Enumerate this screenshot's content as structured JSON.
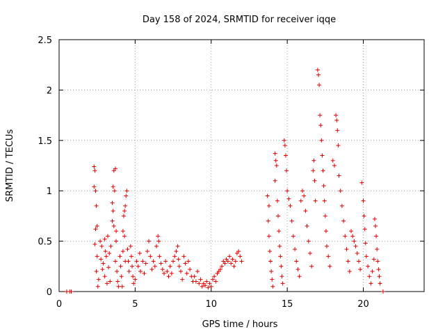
{
  "chart_data": {
    "type": "scatter",
    "title": "Day 158 of 2024, SRMTID for receiver iqqe",
    "xlabel": "GPS time / hours",
    "ylabel": "SRMTID / TECUs",
    "xlim": [
      0,
      24
    ],
    "ylim": [
      0,
      2.5
    ],
    "x_ticks": [
      0,
      5,
      10,
      15,
      20
    ],
    "x_tick_labels": [
      "0",
      "5",
      "10",
      "15",
      "20"
    ],
    "y_ticks": [
      0,
      0.5,
      1,
      1.5,
      2,
      2.5
    ],
    "y_tick_labels": [
      "0",
      "0.5",
      "1",
      "1.5",
      "2",
      "2.5"
    ],
    "grid": true,
    "marker": "+",
    "color": "#e00000",
    "series": [
      {
        "name": "SRMTID",
        "points": [
          [
            0.5,
            0
          ],
          [
            0.7,
            0
          ],
          [
            0.8,
            0
          ],
          [
            2.3,
            1.24
          ],
          [
            2.35,
            1.2
          ],
          [
            2.3,
            1.04
          ],
          [
            2.4,
            1.0
          ],
          [
            2.45,
            0.85
          ],
          [
            2.5,
            0.65
          ],
          [
            2.4,
            0.62
          ],
          [
            2.35,
            0.47
          ],
          [
            2.5,
            0.35
          ],
          [
            2.45,
            0.2
          ],
          [
            2.6,
            0.12
          ],
          [
            2.55,
            0.05
          ],
          [
            2.7,
            0.5
          ],
          [
            2.8,
            0.45
          ],
          [
            2.75,
            0.32
          ],
          [
            2.9,
            0.28
          ],
          [
            2.85,
            0.22
          ],
          [
            3.0,
            0.52
          ],
          [
            3.05,
            0.4
          ],
          [
            3.1,
            0.35
          ],
          [
            3.0,
            0.15
          ],
          [
            3.15,
            0.08
          ],
          [
            3.2,
            0.55
          ],
          [
            3.3,
            0.38
          ],
          [
            3.25,
            0.24
          ],
          [
            3.35,
            0.1
          ],
          [
            3.4,
            0.45
          ],
          [
            3.5,
            0.88
          ],
          [
            3.55,
            0.8
          ],
          [
            3.5,
            0.7
          ],
          [
            3.6,
            0.65
          ],
          [
            3.55,
            1.04
          ],
          [
            3.65,
            1.0
          ],
          [
            3.6,
            1.2
          ],
          [
            3.7,
            1.22
          ],
          [
            3.75,
            0.5
          ],
          [
            3.7,
            0.3
          ],
          [
            3.8,
            0.2
          ],
          [
            3.85,
            0.1
          ],
          [
            3.9,
            0.05
          ],
          [
            3.75,
            0.6
          ],
          [
            4.0,
            0.35
          ],
          [
            4.05,
            0.25
          ],
          [
            4.1,
            0.15
          ],
          [
            4.15,
            0.05
          ],
          [
            4.2,
            0.6
          ],
          [
            4.25,
            0.75
          ],
          [
            4.3,
            0.8
          ],
          [
            4.35,
            0.85
          ],
          [
            4.4,
            0.95
          ],
          [
            4.45,
            1.0
          ],
          [
            4.3,
            0.55
          ],
          [
            4.2,
            0.4
          ],
          [
            4.35,
            0.3
          ],
          [
            4.5,
            0.42
          ],
          [
            4.55,
            0.3
          ],
          [
            4.6,
            0.2
          ],
          [
            4.7,
            0.45
          ],
          [
            4.75,
            0.35
          ],
          [
            4.8,
            0.25
          ],
          [
            4.85,
            0.15
          ],
          [
            4.9,
            0.08
          ],
          [
            5.0,
            0.12
          ],
          [
            5.1,
            0.3
          ],
          [
            5.2,
            0.25
          ],
          [
            5.3,
            0.38
          ],
          [
            5.35,
            0.2
          ],
          [
            5.5,
            0.3
          ],
          [
            5.6,
            0.18
          ],
          [
            5.7,
            0.28
          ],
          [
            5.8,
            0.4
          ],
          [
            5.9,
            0.5
          ],
          [
            6.0,
            0.35
          ],
          [
            6.1,
            0.22
          ],
          [
            6.2,
            0.3
          ],
          [
            6.3,
            0.25
          ],
          [
            6.4,
            0.45
          ],
          [
            6.5,
            0.55
          ],
          [
            6.55,
            0.5
          ],
          [
            6.6,
            0.35
          ],
          [
            6.7,
            0.28
          ],
          [
            6.8,
            0.22
          ],
          [
            6.9,
            0.18
          ],
          [
            7.0,
            0.3
          ],
          [
            7.1,
            0.2
          ],
          [
            7.2,
            0.15
          ],
          [
            7.3,
            0.25
          ],
          [
            7.4,
            0.18
          ],
          [
            7.5,
            0.3
          ],
          [
            7.6,
            0.35
          ],
          [
            7.7,
            0.4
          ],
          [
            7.8,
            0.45
          ],
          [
            7.85,
            0.32
          ],
          [
            7.9,
            0.25
          ],
          [
            8.0,
            0.2
          ],
          [
            8.1,
            0.12
          ],
          [
            8.2,
            0.35
          ],
          [
            8.3,
            0.28
          ],
          [
            8.4,
            0.18
          ],
          [
            8.5,
            0.3
          ],
          [
            8.6,
            0.22
          ],
          [
            8.7,
            0.15
          ],
          [
            8.8,
            0.1
          ],
          [
            8.9,
            0.15
          ],
          [
            9.0,
            0.1
          ],
          [
            9.1,
            0.2
          ],
          [
            9.2,
            0.08
          ],
          [
            9.3,
            0.12
          ],
          [
            9.4,
            0.05
          ],
          [
            9.5,
            0.08
          ],
          [
            9.6,
            0.06
          ],
          [
            9.7,
            0.1
          ],
          [
            9.8,
            0.04
          ],
          [
            9.9,
            0.08
          ],
          [
            10.0,
            0.05
          ],
          [
            10.1,
            0.12
          ],
          [
            10.2,
            0.15
          ],
          [
            10.3,
            0.1
          ],
          [
            10.4,
            0.18
          ],
          [
            10.5,
            0.2
          ],
          [
            10.6,
            0.22
          ],
          [
            10.7,
            0.25
          ],
          [
            10.8,
            0.3
          ],
          [
            10.9,
            0.28
          ],
          [
            11.0,
            0.32
          ],
          [
            11.1,
            0.3
          ],
          [
            11.2,
            0.35
          ],
          [
            11.3,
            0.28
          ],
          [
            11.4,
            0.32
          ],
          [
            11.5,
            0.25
          ],
          [
            11.6,
            0.3
          ],
          [
            11.7,
            0.38
          ],
          [
            11.8,
            0.4
          ],
          [
            11.9,
            0.35
          ],
          [
            12.0,
            0.3
          ],
          [
            13.7,
            0.95
          ],
          [
            13.8,
            0.85
          ],
          [
            13.75,
            0.7
          ],
          [
            13.8,
            0.55
          ],
          [
            13.85,
            0.4
          ],
          [
            13.9,
            0.3
          ],
          [
            13.95,
            0.2
          ],
          [
            14.0,
            0.12
          ],
          [
            14.05,
            0.05
          ],
          [
            14.2,
            1.37
          ],
          [
            14.25,
            1.3
          ],
          [
            14.3,
            1.25
          ],
          [
            14.2,
            1.1
          ],
          [
            14.35,
            0.9
          ],
          [
            14.4,
            0.75
          ],
          [
            14.45,
            0.6
          ],
          [
            14.5,
            0.45
          ],
          [
            14.55,
            0.35
          ],
          [
            14.6,
            0.25
          ],
          [
            14.65,
            0.15
          ],
          [
            14.7,
            0.08
          ],
          [
            14.8,
            1.5
          ],
          [
            14.85,
            1.45
          ],
          [
            14.9,
            1.35
          ],
          [
            14.95,
            1.2
          ],
          [
            15.0,
            1.0
          ],
          [
            15.1,
            0.92
          ],
          [
            15.2,
            0.85
          ],
          [
            15.3,
            0.7
          ],
          [
            15.4,
            0.55
          ],
          [
            15.5,
            0.42
          ],
          [
            15.6,
            0.3
          ],
          [
            15.7,
            0.22
          ],
          [
            15.8,
            0.15
          ],
          [
            15.9,
            0.9
          ],
          [
            16.0,
            1.0
          ],
          [
            16.1,
            0.95
          ],
          [
            16.2,
            0.8
          ],
          [
            16.3,
            0.65
          ],
          [
            16.4,
            0.5
          ],
          [
            16.5,
            0.38
          ],
          [
            16.6,
            0.25
          ],
          [
            16.7,
            1.2
          ],
          [
            16.75,
            1.3
          ],
          [
            16.8,
            1.1
          ],
          [
            16.85,
            0.9
          ],
          [
            17.0,
            2.2
          ],
          [
            17.05,
            2.15
          ],
          [
            17.1,
            2.05
          ],
          [
            17.15,
            1.75
          ],
          [
            17.2,
            1.65
          ],
          [
            17.25,
            1.5
          ],
          [
            17.3,
            1.35
          ],
          [
            17.35,
            1.2
          ],
          [
            17.4,
            1.05
          ],
          [
            17.45,
            0.9
          ],
          [
            17.5,
            0.75
          ],
          [
            17.55,
            0.6
          ],
          [
            17.6,
            0.45
          ],
          [
            17.7,
            0.35
          ],
          [
            17.8,
            0.25
          ],
          [
            18.0,
            1.3
          ],
          [
            18.1,
            1.25
          ],
          [
            18.2,
            1.75
          ],
          [
            18.25,
            1.7
          ],
          [
            18.3,
            1.6
          ],
          [
            18.35,
            1.45
          ],
          [
            18.4,
            1.15
          ],
          [
            18.5,
            1.0
          ],
          [
            18.6,
            0.85
          ],
          [
            18.7,
            0.7
          ],
          [
            18.8,
            0.55
          ],
          [
            18.9,
            0.42
          ],
          [
            19.0,
            0.3
          ],
          [
            19.1,
            0.2
          ],
          [
            19.2,
            0.6
          ],
          [
            19.3,
            0.55
          ],
          [
            19.4,
            0.5
          ],
          [
            19.5,
            0.45
          ],
          [
            19.6,
            0.38
          ],
          [
            19.7,
            0.3
          ],
          [
            19.8,
            0.22
          ],
          [
            19.9,
            1.08
          ],
          [
            20.0,
            0.9
          ],
          [
            20.05,
            0.75
          ],
          [
            20.1,
            0.62
          ],
          [
            20.15,
            0.48
          ],
          [
            20.2,
            0.35
          ],
          [
            20.3,
            0.25
          ],
          [
            20.4,
            0.15
          ],
          [
            20.5,
            0.08
          ],
          [
            20.6,
            0.2
          ],
          [
            20.7,
            0.32
          ],
          [
            20.75,
            0.72
          ],
          [
            20.8,
            0.65
          ],
          [
            20.85,
            0.55
          ],
          [
            20.9,
            0.42
          ],
          [
            20.95,
            0.3
          ],
          [
            21.0,
            0.22
          ],
          [
            21.05,
            0.15
          ],
          [
            21.1,
            0.08
          ],
          [
            21.3,
            0
          ]
        ]
      }
    ]
  }
}
